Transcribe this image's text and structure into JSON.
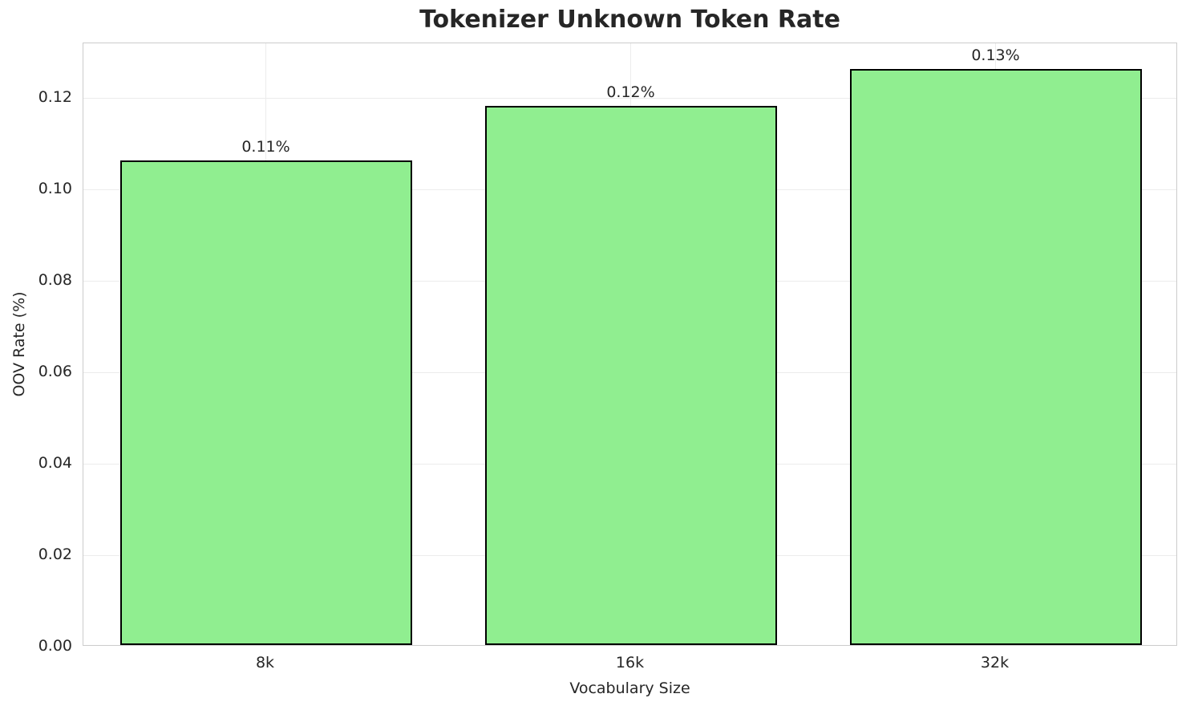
{
  "chart_data": {
    "type": "bar",
    "title": "Tokenizer Unknown Token Rate",
    "xlabel": "Vocabulary Size",
    "ylabel": "OOV Rate (%)",
    "categories": [
      "8k",
      "16k",
      "32k"
    ],
    "values": [
      0.106,
      0.118,
      0.126
    ],
    "bar_labels": [
      "0.11%",
      "0.12%",
      "0.13%"
    ],
    "ylim": [
      0,
      0.132
    ],
    "yticks": [
      0,
      0.02,
      0.04,
      0.06,
      0.08,
      0.1,
      0.12
    ],
    "ytick_labels": [
      "0.00",
      "0.02",
      "0.04",
      "0.06",
      "0.08",
      "0.10",
      "0.12"
    ],
    "grid": true,
    "legend_position": "none",
    "bar_color": "#90ee90",
    "bar_edge_color": "#000000",
    "text_color": "#262626",
    "grid_color": "#ececec",
    "spine_color": "#cccccc",
    "background_color": "#ffffff"
  }
}
